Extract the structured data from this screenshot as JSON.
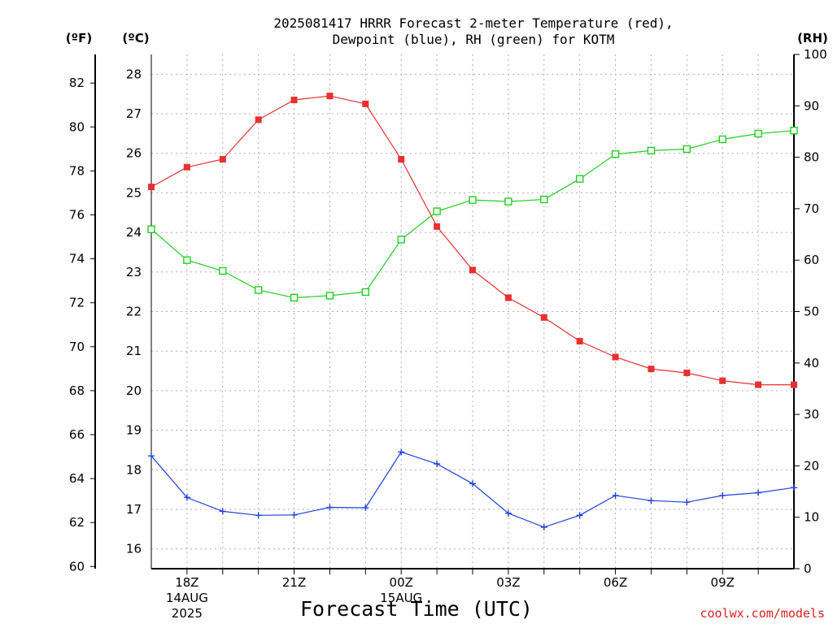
{
  "chart_data": {
    "type": "line",
    "title": "2025081417 HRRR Forecast 2-meter Temperature (red), Dewpoint (blue), RH (green) for KOTM",
    "title_lines": [
      "2025081417 HRRR Forecast 2-meter Temperature (red),",
      "Dewpoint (blue), RH (green) for KOTM"
    ],
    "xlabel": "Forecast Time (UTC)",
    "credit": "coolwx.com/models",
    "units": {
      "fahrenheit": "(ºF)",
      "celsius": "(ºC)",
      "rh": "(RH)"
    },
    "x": [
      "17Z",
      "18Z",
      "19Z",
      "20Z",
      "21Z",
      "22Z",
      "23Z",
      "00Z",
      "01Z",
      "02Z",
      "03Z",
      "04Z",
      "05Z",
      "06Z",
      "07Z",
      "08Z",
      "09Z",
      "10Z",
      "11Z"
    ],
    "x_tick_labels": [
      {
        "label": "18Z",
        "sub": [
          "14AUG",
          "2025"
        ]
      },
      {
        "label": "21Z",
        "sub": []
      },
      {
        "label": "00Z",
        "sub": [
          "15AUG"
        ]
      },
      {
        "label": "03Z",
        "sub": []
      },
      {
        "label": "06Z",
        "sub": []
      },
      {
        "label": "09Z",
        "sub": []
      }
    ],
    "y_celsius_ticks": [
      "16",
      "17",
      "18",
      "19",
      "20",
      "21",
      "22",
      "23",
      "24",
      "25",
      "26",
      "27",
      "28"
    ],
    "y_fahrenheit_ticks": [
      "60",
      "62",
      "64",
      "66",
      "68",
      "70",
      "72",
      "74",
      "76",
      "78",
      "80",
      "82"
    ],
    "y_rh_ticks": [
      "0",
      "10",
      "20",
      "30",
      "40",
      "50",
      "60",
      "70",
      "80",
      "90",
      "100"
    ],
    "ylim_celsius": [
      15.5,
      28.5
    ],
    "ylim_rh": [
      0,
      100
    ],
    "series": [
      {
        "name": "Temperature",
        "axis": "celsius",
        "color": "#e83030",
        "marker": "filled-square",
        "values": [
          25.15,
          25.65,
          25.85,
          26.85,
          27.35,
          27.45,
          27.25,
          25.85,
          24.15,
          23.05,
          22.35,
          21.85,
          21.25,
          20.85,
          20.55,
          20.45,
          20.25,
          20.15,
          20.15
        ]
      },
      {
        "name": "Dewpoint",
        "axis": "celsius",
        "color": "#2040e0",
        "marker": "plus",
        "values": [
          18.35,
          17.3,
          16.95,
          16.85,
          16.86,
          17.05,
          17.04,
          18.45,
          18.15,
          17.65,
          16.9,
          16.55,
          16.85,
          17.35,
          17.22,
          17.18,
          17.35,
          17.42,
          17.55
        ]
      },
      {
        "name": "RH",
        "axis": "rh",
        "color": "#20d020",
        "marker": "open-square",
        "values": [
          66.0,
          60.0,
          57.9,
          54.2,
          52.7,
          53.1,
          53.8,
          64.0,
          69.5,
          71.7,
          71.4,
          71.8,
          75.8,
          80.6,
          81.3,
          81.6,
          83.5,
          84.6,
          85.2
        ]
      }
    ],
    "grid": true
  }
}
